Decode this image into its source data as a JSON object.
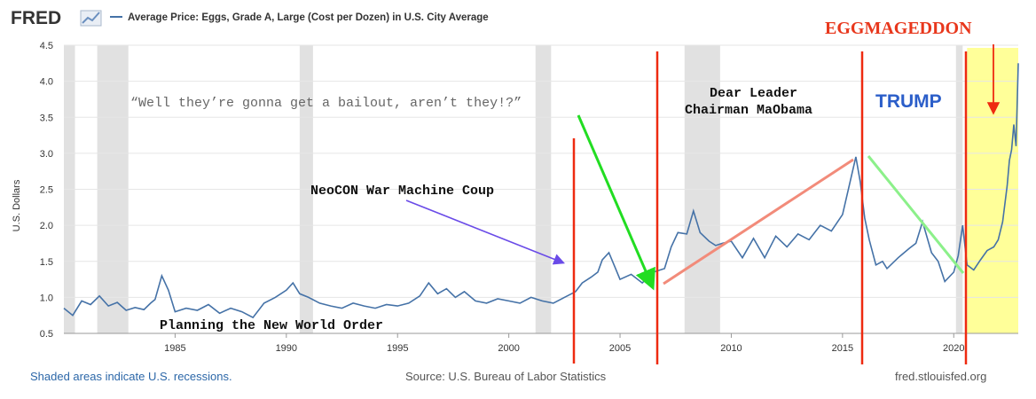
{
  "header": {
    "logo_text": "FRED",
    "series_title": "Average Price: Eggs, Grade A, Large (Cost per Dozen) in U.S. City Average"
  },
  "footer": {
    "recession_note": "Shaded areas indicate U.S. recessions.",
    "source": "Source: U.S. Bureau of Labor Statistics",
    "site": "fred.stlouisfed.org"
  },
  "colors": {
    "series": "#4572a7",
    "recession_shade": "#e1e1e1",
    "red_line": "#ee2a10",
    "highlight": "#ffff99",
    "trump_text": "#2b5ec9",
    "eggmageddon_text": "#e8371c"
  },
  "chart_data": {
    "type": "line",
    "title": "Average Price: Eggs, Grade A, Large (Cost per Dozen) in U.S. City Average",
    "ylabel": "U.S. Dollars",
    "xlabel": "",
    "xlim": [
      1980.0,
      2022.9
    ],
    "ylim": [
      0.5,
      4.5
    ],
    "x_ticks": [
      1985,
      1990,
      1995,
      2000,
      2005,
      2010,
      2015,
      2020
    ],
    "y_ticks": [
      0.5,
      1.0,
      1.5,
      2.0,
      2.5,
      3.0,
      3.5,
      4.0,
      4.5
    ],
    "y_tick_labels": [
      "0.5",
      "1.0",
      "1.5",
      "2.0",
      "2.5",
      "3.0",
      "3.5",
      "4.0",
      "4.5"
    ],
    "grid": "horizontal",
    "recessions": [
      [
        1980.0,
        1980.5
      ],
      [
        1981.5,
        1982.9
      ],
      [
        1990.6,
        1991.2
      ],
      [
        2001.2,
        2001.9
      ],
      [
        2007.9,
        2009.5
      ],
      [
        2020.1,
        2020.4
      ]
    ],
    "series": [
      {
        "name": "Average Price: Eggs, Grade A, Large (Cost per Dozen) in U.S. City Average",
        "x": [
          1980.0,
          1980.4,
          1980.8,
          1981.2,
          1981.6,
          1982.0,
          1982.4,
          1982.8,
          1983.2,
          1983.6,
          1983.9,
          1984.1,
          1984.4,
          1984.7,
          1985.0,
          1985.5,
          1986.0,
          1986.5,
          1987.0,
          1987.5,
          1988.0,
          1988.5,
          1989.0,
          1989.5,
          1990.0,
          1990.3,
          1990.6,
          1991.0,
          1991.5,
          1992.0,
          1992.5,
          1993.0,
          1993.5,
          1994.0,
          1994.5,
          1995.0,
          1995.5,
          1996.0,
          1996.4,
          1996.8,
          1997.2,
          1997.6,
          1998.0,
          1998.5,
          1999.0,
          1999.5,
          2000.0,
          2000.5,
          2001.0,
          2001.5,
          2002.0,
          2002.5,
          2003.0,
          2003.3,
          2003.7,
          2004.0,
          2004.2,
          2004.5,
          2004.8,
          2005.0,
          2005.5,
          2006.0,
          2006.5,
          2007.0,
          2007.3,
          2007.6,
          2008.0,
          2008.3,
          2008.6,
          2009.0,
          2009.3,
          2009.6,
          2010.0,
          2010.5,
          2011.0,
          2011.5,
          2012.0,
          2012.5,
          2013.0,
          2013.5,
          2014.0,
          2014.5,
          2015.0,
          2015.3,
          2015.6,
          2015.8,
          2016.0,
          2016.2,
          2016.5,
          2016.8,
          2017.0,
          2017.5,
          2018.0,
          2018.3,
          2018.6,
          2019.0,
          2019.3,
          2019.6,
          2020.0,
          2020.2,
          2020.4,
          2020.6,
          2020.9,
          2021.2,
          2021.5,
          2021.8,
          2022.0,
          2022.2,
          2022.4,
          2022.5,
          2022.6,
          2022.7,
          2022.8,
          2022.9
        ],
        "values": [
          0.85,
          0.75,
          0.95,
          0.9,
          1.02,
          0.88,
          0.93,
          0.82,
          0.86,
          0.83,
          0.92,
          0.97,
          1.3,
          1.1,
          0.8,
          0.85,
          0.82,
          0.9,
          0.78,
          0.85,
          0.8,
          0.72,
          0.92,
          1.0,
          1.1,
          1.2,
          1.05,
          1.0,
          0.92,
          0.88,
          0.85,
          0.92,
          0.88,
          0.85,
          0.9,
          0.88,
          0.92,
          1.02,
          1.2,
          1.05,
          1.12,
          1.0,
          1.08,
          0.95,
          0.92,
          0.98,
          0.95,
          0.92,
          1.0,
          0.95,
          0.92,
          1.0,
          1.08,
          1.2,
          1.28,
          1.35,
          1.52,
          1.62,
          1.4,
          1.25,
          1.32,
          1.2,
          1.35,
          1.4,
          1.7,
          1.9,
          1.88,
          2.2,
          1.9,
          1.78,
          1.72,
          1.75,
          1.78,
          1.55,
          1.82,
          1.55,
          1.85,
          1.7,
          1.88,
          1.8,
          2.0,
          1.92,
          2.15,
          2.55,
          2.95,
          2.6,
          2.1,
          1.8,
          1.45,
          1.5,
          1.4,
          1.55,
          1.68,
          1.75,
          2.05,
          1.62,
          1.5,
          1.22,
          1.35,
          1.58,
          2.0,
          1.45,
          1.38,
          1.52,
          1.65,
          1.7,
          1.8,
          2.05,
          2.55,
          2.9,
          3.05,
          3.4,
          3.1,
          4.25
        ]
      }
    ],
    "annotations": {
      "quote": "“Well they’re gonna get a bailout, aren’t they!?”",
      "neocon": "NeoCON War Machine Coup",
      "planning": "Planning the New World Order",
      "dear_leader": "Dear Leader",
      "chairman": "Chairman MaObama",
      "trump": "TRUMP",
      "eggmageddon": "EGGMAGEDDON"
    }
  }
}
